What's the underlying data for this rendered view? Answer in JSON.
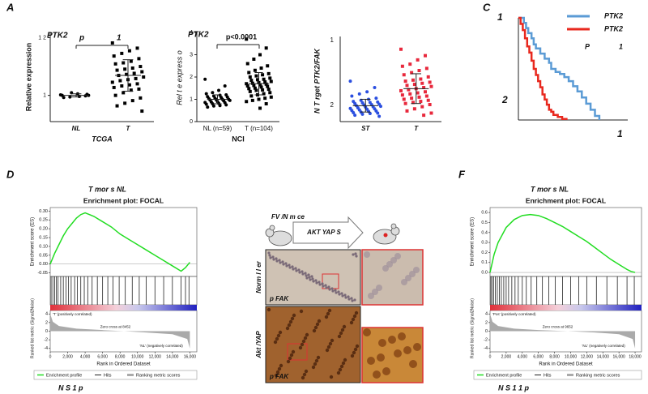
{
  "panel_labels": [
    "A",
    "C",
    "D",
    "F"
  ],
  "a1": {
    "title": "PTK2",
    "p_label": "p",
    "p_value": "1",
    "ylabel": "Relative expression",
    "xlabel": "TCGA",
    "categories": [
      "NL",
      "T"
    ],
    "ylim": [
      -4,
      13
    ],
    "yticks": [
      1,
      {
        "value": 12,
        "label": "1 2"
      }
    ],
    "groups": [
      {
        "color": "#000000",
        "marker": "circle",
        "values": [
          1.1,
          0.9,
          1.3,
          0.7,
          1.0,
          1.2,
          0.8,
          1.5,
          0.6,
          1.0
        ],
        "mean": 1.0,
        "sd": 0.3
      },
      {
        "color": "#000000",
        "marker": "square",
        "values": [
          11,
          10,
          9.5,
          9,
          8.5,
          8,
          7.5,
          7.2,
          7,
          6.5,
          6.2,
          6,
          5.8,
          5.5,
          5.2,
          5,
          4.8,
          4.5,
          4.2,
          4,
          3.8,
          3.5,
          3.2,
          3,
          2.8,
          2.5,
          2.2,
          2,
          1.5,
          1,
          0.5,
          0,
          -0.5,
          -1,
          -2
        ],
        "mean": 4.8,
        "sd": 3
      }
    ]
  },
  "a2": {
    "title": "PTK2",
    "p_value": "p<0.0001",
    "ylabel": "Rel  t  e express o",
    "xlabel": "NCI",
    "categories": [
      "NL (n=59)",
      "T (n=104)"
    ],
    "ylim": [
      0,
      4
    ],
    "yticks": [
      0,
      1,
      2,
      3,
      4
    ],
    "groups": [
      {
        "color": "#000000",
        "marker": "circle",
        "values": [
          1.9,
          1.6,
          1.4,
          1.3,
          1.25,
          1.2,
          1.18,
          1.15,
          1.12,
          1.1,
          1.08,
          1.05,
          1.03,
          1.0,
          1.0,
          0.98,
          0.97,
          0.95,
          0.93,
          0.9,
          0.88,
          0.86,
          0.85,
          0.82,
          0.8,
          0.78,
          0.75,
          0.72,
          0.7,
          0.65
        ],
        "mean": 1.0,
        "sd": 0.2
      },
      {
        "color": "#000000",
        "marker": "square",
        "values": [
          3.7,
          3.3,
          3.0,
          2.8,
          2.6,
          2.5,
          2.4,
          2.3,
          2.2,
          2.15,
          2.1,
          2.05,
          2.0,
          1.95,
          1.9,
          1.88,
          1.85,
          1.8,
          1.78,
          1.75,
          1.72,
          1.7,
          1.68,
          1.65,
          1.62,
          1.6,
          1.58,
          1.55,
          1.5,
          1.48,
          1.45,
          1.42,
          1.4,
          1.35,
          1.3,
          1.25,
          1.2,
          1.15,
          1.1,
          1.05,
          1.0,
          0.95,
          0.9,
          0.8,
          0.6
        ],
        "mean": 1.7,
        "sd": 0.5
      }
    ]
  },
  "a3": {
    "ylabel": "N T  rget PTK2/FAK",
    "axis_texts": [
      "1",
      "2"
    ],
    "categories": [
      "ST",
      "T"
    ],
    "ylim": [
      0,
      4
    ],
    "groups": [
      {
        "color": "#2b4fe0",
        "marker": "circle",
        "values": [
          1.9,
          1.6,
          1.4,
          1.3,
          1.2,
          1.1,
          1.05,
          1.0,
          0.95,
          0.92,
          0.9,
          0.88,
          0.85,
          0.82,
          0.8,
          0.78,
          0.75,
          0.72,
          0.7,
          0.68,
          0.65,
          0.62,
          0.6,
          0.58,
          0.55,
          0.52,
          0.5,
          0.48,
          0.45,
          0.42,
          0.4,
          0.38,
          0.35,
          0.3,
          0.25
        ],
        "mean": 0.75,
        "sd": 0.3
      },
      {
        "color": "#e8283c",
        "marker": "square",
        "values": [
          3.4,
          3.1,
          2.9,
          2.7,
          2.6,
          2.5,
          2.4,
          2.3,
          2.2,
          2.1,
          2.0,
          1.95,
          1.9,
          1.85,
          1.8,
          1.75,
          1.7,
          1.65,
          1.6,
          1.55,
          1.5,
          1.45,
          1.4,
          1.35,
          1.3,
          1.25,
          1.2,
          1.15,
          1.1,
          1.05,
          1.0,
          0.95,
          0.9,
          0.85,
          0.8,
          0.7,
          0.6,
          0.5,
          0.4,
          0.3
        ],
        "mean": 1.55,
        "sd": 0.7
      }
    ]
  },
  "c": {
    "axis_texts": [
      "1",
      "2",
      "1"
    ],
    "p_label": "P",
    "p_value": "1",
    "xlim": [
      0,
      100
    ],
    "ylim": [
      0,
      100
    ],
    "series": [
      {
        "name": "PTK2",
        "color": "#5b9bd5",
        "x": [
          0,
          5,
          7,
          9,
          12,
          14,
          16,
          20,
          24,
          28,
          30,
          34,
          38,
          42,
          46,
          50,
          54,
          58,
          62,
          66,
          70,
          74
        ],
        "y": [
          100,
          95,
          90,
          85,
          80,
          74,
          70,
          65,
          60,
          56,
          50,
          47,
          45,
          42,
          38,
          33,
          28,
          22,
          16,
          10,
          4,
          0
        ]
      },
      {
        "name": "PTK2",
        "color": "#e8281e",
        "x": [
          0,
          2,
          4,
          6,
          8,
          10,
          12,
          14,
          16,
          18,
          20,
          22,
          24,
          26,
          28,
          30,
          32,
          36,
          40,
          44
        ],
        "y": [
          100,
          94,
          88,
          80,
          72,
          66,
          58,
          50,
          44,
          38,
          32,
          25,
          20,
          15,
          10,
          8,
          5,
          3,
          1,
          0
        ]
      }
    ]
  },
  "d": {
    "heading": "T mor    s NL",
    "title": "Enrichment plot: FOCAL",
    "es_label": "Enrichment score (ES)",
    "metric_label": "Ranked list metric (Signal2Noise)",
    "xlabel": "Rank in Ordered Dataset",
    "pos_label": "'T' (positively correlated)",
    "zero_label": "Zero cross at 8452",
    "neg_label": "'NL' (negatively correlated)",
    "legend": [
      "Enrichment profile",
      "Hits",
      "Ranking metric scores"
    ],
    "caption": "N  S 1    p",
    "xlim": [
      0,
      16800
    ],
    "xticks": [
      0,
      {
        "value": 2000,
        "label": "2,000"
      },
      {
        "value": 4000,
        "label": "4,000"
      },
      {
        "value": 6000,
        "label": "6,000"
      },
      {
        "value": 8000,
        "label": "8,000"
      },
      {
        "value": 10000,
        "label": "10,000"
      },
      {
        "value": 12000,
        "label": "12,000"
      },
      {
        "value": 14000,
        "label": "14,000"
      },
      {
        "value": 16000,
        "label": "16,000"
      }
    ],
    "es_ylim": [
      -0.07,
      0.32
    ],
    "es_yticks": [
      {
        "value": 0.3,
        "label": "0.30"
      },
      0.25,
      {
        "value": 0.2,
        "label": "0.20"
      },
      0.15,
      {
        "value": 0.1,
        "label": "0.10"
      },
      0.05,
      {
        "value": 0,
        "label": "0.00"
      },
      -0.05
    ],
    "metric_ylim": [
      -4.8,
      4.8
    ],
    "metric_yticks": [
      4,
      2,
      0,
      -2,
      -4
    ],
    "es": {
      "x": [
        0,
        500,
        1000,
        1500,
        2000,
        2500,
        3000,
        3500,
        4000,
        4500,
        5000,
        6000,
        7000,
        8000,
        9000,
        10000,
        11000,
        12000,
        13000,
        14000,
        15000,
        15500,
        16000
      ],
      "y": [
        0,
        0.06,
        0.11,
        0.16,
        0.2,
        0.23,
        0.26,
        0.28,
        0.29,
        0.28,
        0.27,
        0.24,
        0.21,
        0.17,
        0.14,
        0.11,
        0.08,
        0.05,
        0.02,
        -0.01,
        -0.04,
        -0.02,
        0.01
      ]
    },
    "hits": [
      100,
      300,
      500,
      700,
      900,
      1200,
      1500,
      1800,
      2100,
      2400,
      2800,
      3100,
      3500,
      3900,
      4300,
      4800,
      5400,
      6000,
      6600,
      7200,
      7900,
      8600,
      9400,
      10200,
      11000,
      12000,
      13000,
      14000,
      15000,
      15500,
      15900
    ],
    "metric": {
      "x": [
        0,
        300,
        1000,
        3000,
        6000,
        8452,
        11000,
        14000,
        15700,
        16000
      ],
      "y": [
        4,
        2.2,
        1.2,
        0.6,
        0.25,
        0,
        -0.3,
        -0.7,
        -1.8,
        -4
      ]
    }
  },
  "f": {
    "heading": "T mor  s NL",
    "title": "Enrichment plot: FOCAL",
    "es_label": "Enrichment score (ES)",
    "metric_label": "Ranked list metric (Signal2Noise)",
    "xlabel": "Rank in Ordered Dataset",
    "pos_label": "'Pos' (positively correlated)",
    "zero_label": "Zero cross at 9652",
    "neg_label": "'NL' (negatively correlated)",
    "legend": [
      "Enrichment profile",
      "Hits",
      "Ranking metric scores"
    ],
    "caption": "N  S 1 1   p",
    "xlim": [
      0,
      18800
    ],
    "xticks": [
      0,
      {
        "value": 2000,
        "label": "2,000"
      },
      {
        "value": 4000,
        "label": "4,000"
      },
      {
        "value": 6000,
        "label": "6,000"
      },
      {
        "value": 8000,
        "label": "8,000"
      },
      {
        "value": 10000,
        "label": "10,000"
      },
      {
        "value": 12000,
        "label": "12,000"
      },
      {
        "value": 14000,
        "label": "14,000"
      },
      {
        "value": 16000,
        "label": "16,000"
      },
      {
        "value": 18000,
        "label": "18,000"
      }
    ],
    "es_ylim": [
      -0.04,
      0.65
    ],
    "es_yticks": [
      0.6,
      0.5,
      0.4,
      0.3,
      0.2,
      0.1,
      {
        "value": 0,
        "label": "0.0"
      }
    ],
    "metric_ylim": [
      -4.8,
      4.8
    ],
    "metric_yticks": [
      4,
      2,
      0,
      -2,
      -4
    ],
    "es": {
      "x": [
        0,
        500,
        1000,
        2000,
        3000,
        4000,
        5000,
        6000,
        7000,
        8000,
        9000,
        10000,
        11000,
        12000,
        13000,
        14000,
        15000,
        16000,
        17000,
        17500,
        18000
      ],
      "y": [
        0,
        0.18,
        0.3,
        0.45,
        0.53,
        0.57,
        0.58,
        0.57,
        0.54,
        0.5,
        0.46,
        0.41,
        0.36,
        0.31,
        0.25,
        0.19,
        0.13,
        0.08,
        0.03,
        0.01,
        0
      ]
    },
    "hits": [
      100,
      250,
      450,
      650,
      900,
      1150,
      1400,
      1700,
      2000,
      2300,
      2700,
      3100,
      3500,
      4000,
      4500,
      5100,
      5800,
      6500,
      7300,
      8100,
      9000,
      10000,
      11000,
      12000,
      13200,
      14500,
      15800,
      17000,
      17900
    ],
    "metric": {
      "x": [
        0,
        300,
        1000,
        3000,
        6000,
        9652,
        13000,
        16000,
        17700,
        18000
      ],
      "y": [
        4,
        2.2,
        1.2,
        0.6,
        0.25,
        0,
        -0.3,
        -0.7,
        -1.8,
        -4
      ]
    }
  },
  "e": {
    "model": "FV  /N m ce",
    "construct": "AKT   YAP   S",
    "row1": "Norm  l l  er",
    "stain1": "p FAK",
    "row2": "Akt /YAP",
    "stain2": "p FAK"
  }
}
